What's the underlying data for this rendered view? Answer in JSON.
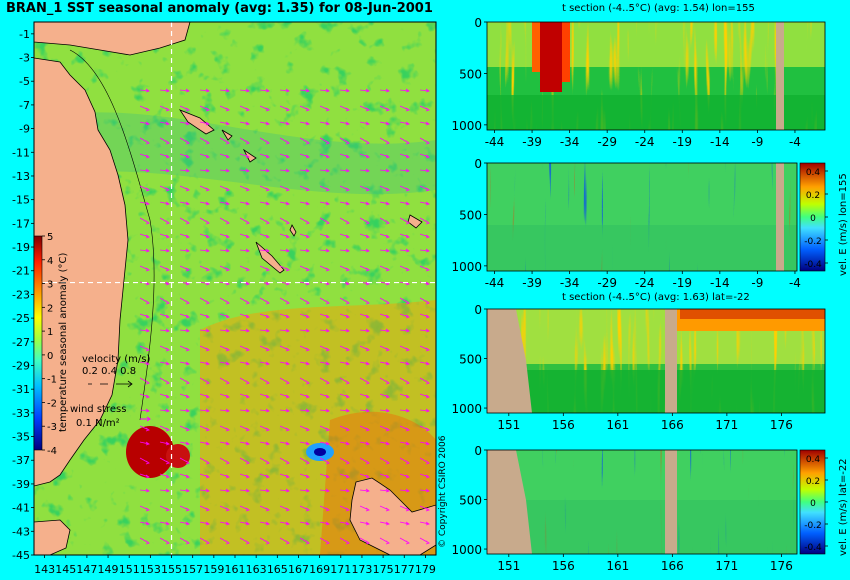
{
  "chart_data": [
    {
      "type": "heatmap",
      "title": "BRAN_1 SST seasonal anomaly (avg: 1.35) for 08-Jun-2001",
      "x_ticks": [
        "143",
        "145",
        "147",
        "149",
        "151",
        "153",
        "155",
        "157",
        "159",
        "161",
        "163",
        "165",
        "167",
        "169",
        "171",
        "173",
        "175",
        "177",
        "179"
      ],
      "y_ticks": [
        "-1",
        "-3",
        "-5",
        "-7",
        "-9",
        "-11",
        "-13",
        "-15",
        "-17",
        "-19",
        "-21",
        "-23",
        "-25",
        "-27",
        "-29",
        "-31",
        "-33",
        "-35",
        "-37",
        "-39",
        "-41",
        "-43",
        "-45"
      ],
      "xlim": [
        142,
        180
      ],
      "ylim": [
        -45,
        0
      ],
      "crosshair": {
        "lon": 155,
        "lat": -22
      },
      "colorbar": {
        "label": "temperature seasonal anomaly (°C)",
        "ticks": [
          "5",
          "4",
          "3",
          "2",
          "1",
          "0",
          "-1",
          "-2",
          "-3",
          "-4"
        ],
        "range": [
          -4,
          5
        ]
      },
      "legend": {
        "velocity_label": "velocity (m/s)",
        "velocity_values": "0.2 0.4 0.8",
        "wind_label": "wind stress",
        "wind_value": "0.1 N/m²"
      },
      "land_color": "#f5b08c"
    },
    {
      "type": "heatmap",
      "title": "t section (-4..5°C) (avg: 1.54) lon=155",
      "x_ticks": [
        "-44",
        "-39",
        "-34",
        "-29",
        "-24",
        "-19",
        "-14",
        "-9",
        "-4"
      ],
      "y_ticks": [
        "0",
        "500",
        "1000"
      ],
      "xlim": [
        -45,
        0
      ],
      "ylim": [
        1050,
        0
      ]
    },
    {
      "type": "heatmap",
      "title": "",
      "x_ticks": [
        "-44",
        "-39",
        "-34",
        "-29",
        "-24",
        "-19",
        "-14",
        "-9",
        "-4"
      ],
      "y_ticks": [
        "0",
        "500",
        "1000"
      ],
      "xlim": [
        -45,
        0
      ],
      "ylim": [
        1050,
        0
      ],
      "colorbar": {
        "label": "vel. E (m/s) lon=155",
        "ticks": [
          "0.4",
          "0.2",
          "0",
          "-0.2",
          "-0.4"
        ]
      }
    },
    {
      "type": "heatmap",
      "title": "t section (-4..5°C) (avg: 1.63) lat=-22",
      "x_ticks": [
        "151",
        "156",
        "161",
        "166",
        "171",
        "176"
      ],
      "y_ticks": [
        "0",
        "500",
        "1000"
      ],
      "xlim": [
        149,
        180
      ],
      "ylim": [
        1050,
        0
      ]
    },
    {
      "type": "heatmap",
      "title": "",
      "x_ticks": [
        "151",
        "156",
        "161",
        "166",
        "171",
        "176"
      ],
      "y_ticks": [
        "0",
        "500",
        "1000"
      ],
      "xlim": [
        149,
        180
      ],
      "ylim": [
        1050,
        0
      ],
      "colorbar": {
        "label": "vel. E (m/s) lat=-22",
        "ticks": [
          "0.4",
          "0.2",
          "0",
          "-0.2",
          "-0.4"
        ]
      }
    }
  ],
  "copyright": "© Copyright CSIRO 2006",
  "colors": {
    "background": "#00ffff",
    "land": "#f5b08c",
    "section_land": "#c8aa8c",
    "vectors": "#ff00ff"
  }
}
